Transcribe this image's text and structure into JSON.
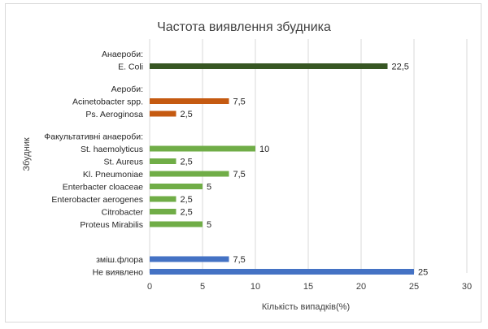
{
  "chart_data": {
    "type": "bar",
    "orientation": "horizontal",
    "title": "Частота виявлення збудника",
    "xlabel": "Кількість випадків(%)",
    "ylabel": "Збудник",
    "xlim": [
      0,
      30
    ],
    "x_ticks": [
      0,
      5,
      10,
      15,
      20,
      25,
      30
    ],
    "grid": "vertical",
    "colors": {
      "anaerobes": "#375623",
      "aerobes": "#c55a11",
      "facultative": "#70ad47",
      "other": "#4472c4",
      "grid": "#d9d9d9"
    },
    "groups": [
      {
        "header": "Анаероби:",
        "color_key": "anaerobes",
        "items": [
          {
            "label": "E. Coli",
            "value": 22.5,
            "value_label": "22,5"
          }
        ]
      },
      {
        "header": "Аероби:",
        "color_key": "aerobes",
        "items": [
          {
            "label": "Acinetobacter spp.",
            "value": 7.5,
            "value_label": "7,5"
          },
          {
            "label": "Ps. Aeroginosa",
            "value": 2.5,
            "value_label": "2,5"
          }
        ]
      },
      {
        "header": "Факультативні анаероби:",
        "color_key": "facultative",
        "items": [
          {
            "label": "St. haemolyticus",
            "value": 10,
            "value_label": "10"
          },
          {
            "label": "St. Aureus",
            "value": 2.5,
            "value_label": "2,5"
          },
          {
            "label": "Kl. Pneumoniae",
            "value": 7.5,
            "value_label": "7,5"
          },
          {
            "label": "Enterbacter cloaceae",
            "value": 5,
            "value_label": "5"
          },
          {
            "label": "Enterobacter aerogenes",
            "value": 2.5,
            "value_label": "2,5"
          },
          {
            "label": "Citrobacter",
            "value": 2.5,
            "value_label": "2,5"
          },
          {
            "label": "Proteus Mirabilis",
            "value": 5,
            "value_label": "5"
          }
        ]
      },
      {
        "header": "",
        "color_key": "other",
        "items": [
          {
            "label": "зміш.флора",
            "value": 7.5,
            "value_label": "7,5"
          },
          {
            "label": "Не виявлено",
            "value": 25,
            "value_label": "25"
          }
        ]
      }
    ]
  }
}
